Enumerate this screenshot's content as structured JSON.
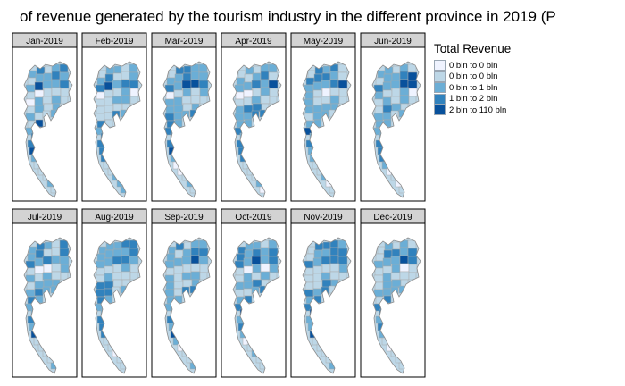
{
  "title": "of revenue generated by the tourism industry in the different province in 2019 (P",
  "chart_data": {
    "type": "choropleth-small-multiples",
    "panels": [
      "Jan-2019",
      "Feb-2019",
      "Mar-2019",
      "Apr-2019",
      "May-2019",
      "Jun-2019",
      "Jul-2019",
      "Aug-2019",
      "Sep-2019",
      "Oct-2019",
      "Nov-2019",
      "Dec-2019"
    ],
    "layout": {
      "rows": 2,
      "columns": 6
    },
    "legend": {
      "title": "Total Revenue",
      "placement": "right",
      "bins": [
        {
          "label": "0 bln to 0 bln",
          "color": "#eff3ff"
        },
        {
          "label": "0 bln to 0 bln",
          "color": "#bdd7e7"
        },
        {
          "label": "0 bln to 1 bln",
          "color": "#6baed6"
        },
        {
          "label": "1 bln to 2 bln",
          "color": "#3182bd"
        },
        {
          "label": "2 bln to 110 bln",
          "color": "#08519c"
        }
      ]
    }
  }
}
